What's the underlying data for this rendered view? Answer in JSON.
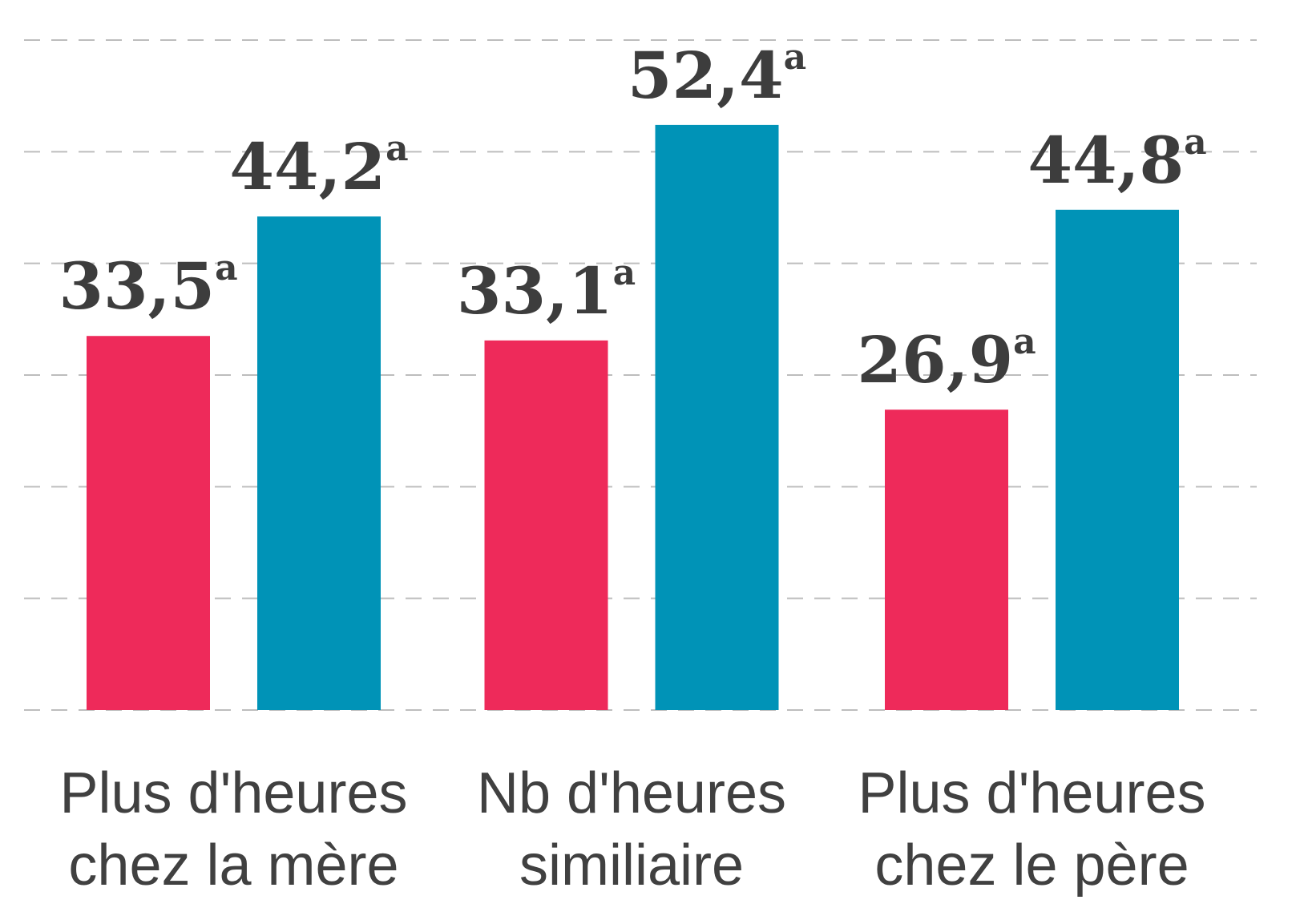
{
  "chart_data": {
    "type": "bar",
    "categories": [
      [
        "Plus d'heures",
        "chez la mère"
      ],
      [
        "Nb d'heures",
        "similiaire"
      ],
      [
        "Plus d'heures",
        "chez le père"
      ]
    ],
    "series": [
      {
        "color": "#ee2a5a",
        "values": [
          33.5,
          33.1,
          26.9
        ],
        "value_labels": [
          "33,5",
          "33,1",
          "26,9"
        ]
      },
      {
        "color": "#0093b7",
        "values": [
          44.2,
          52.4,
          44.8
        ],
        "value_labels": [
          "44,2",
          "52,4",
          "44,8"
        ]
      }
    ],
    "value_label_superscript": "a",
    "ylim": [
      0,
      60
    ],
    "yticks": [
      0,
      10,
      20,
      30,
      40,
      50,
      60
    ],
    "grid": true
  }
}
